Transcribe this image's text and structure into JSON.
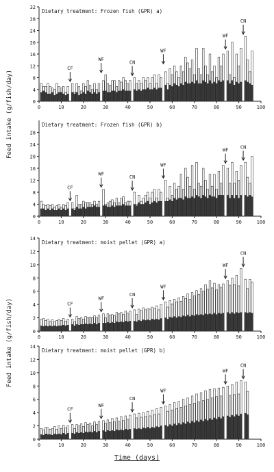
{
  "figure": {
    "ylabel_top": "Feed intake (g/fish/day)",
    "ylabel_bottom": "Feed intake (g/fish/day)",
    "xlabel": "Time (days)"
  },
  "chart_data": [
    {
      "type": "bar",
      "title": "Dietary treatment: Frozen fish (GPR) a)",
      "xlabel": "",
      "ylabel": "",
      "xlim": [
        0,
        100
      ],
      "ylim": [
        0,
        32
      ],
      "yticks": [
        0,
        4,
        8,
        12,
        16,
        20,
        24,
        28,
        32
      ],
      "xticks": [
        0,
        10,
        20,
        30,
        40,
        50,
        60,
        70,
        80,
        90,
        100
      ],
      "annotations": [
        {
          "label": "CF",
          "day": 14
        },
        {
          "label": "WF",
          "day": 28
        },
        {
          "label": "CN",
          "day": 42
        },
        {
          "label": "WF",
          "day": 56
        },
        {
          "label": "WF",
          "day": 84
        },
        {
          "label": "CN",
          "day": 92
        }
      ],
      "series": [
        {
          "values": [
            3,
            3.5,
            3,
            2.5,
            2.5,
            3,
            2,
            2.5,
            3,
            3,
            2.5,
            2,
            2.5,
            2.5,
            3,
            2.5,
            3,
            2,
            2.5,
            3,
            2.5,
            3.5,
            3,
            2.5,
            3,
            2.5,
            3,
            3,
            3.5,
            3.5,
            3,
            3,
            3.5,
            3.5,
            3,
            3.5,
            3.5,
            4,
            3.5,
            3.5,
            3.5,
            4,
            4,
            3.5,
            4,
            3.5,
            4,
            4,
            4.5,
            4,
            4,
            4.5,
            4,
            4.5,
            4.5,
            5,
            5.5,
            4,
            5.5,
            5,
            6,
            5.5,
            5,
            6,
            5.5,
            6.5,
            6,
            6,
            6.5,
            6,
            7,
            6,
            6,
            7,
            6.5,
            6,
            7,
            6,
            6.5,
            6,
            7,
            6.5,
            7,
            6.5,
            7,
            6,
            7,
            5.5,
            6.5,
            6,
            6.5,
            6,
            7,
            6.5,
            6,
            5.5
          ]
        },
        {
          "values": [
            6,
            5,
            5,
            6,
            5,
            4.5,
            4,
            6,
            5,
            4.5,
            5,
            3,
            5,
            5.5,
            6,
            3,
            6,
            5,
            3.5,
            6,
            5,
            7,
            5.5,
            4,
            6,
            4,
            6,
            5.5,
            7,
            9,
            6,
            5.5,
            7,
            7,
            5,
            7,
            6.5,
            8,
            7,
            6,
            7,
            8,
            8,
            6,
            7,
            6,
            8,
            7,
            8,
            6,
            8,
            9,
            6,
            9,
            8,
            12,
            10,
            6,
            11,
            9,
            12,
            10,
            8,
            12,
            10,
            15,
            13,
            11,
            14,
            9,
            18,
            11,
            9,
            18,
            12,
            9,
            16,
            10,
            12,
            8,
            15,
            12,
            16,
            11,
            17,
            9,
            20,
            8,
            16,
            12,
            18,
            9,
            22,
            14,
            10,
            17
          ]
        }
      ]
    },
    {
      "type": "bar",
      "title": "Dietary treatment: Frozen fish (GPR) b)",
      "xlabel": "",
      "ylabel": "",
      "xlim": [
        0,
        100
      ],
      "ylim": [
        0,
        32
      ],
      "yticks": [
        0,
        4,
        8,
        12,
        16,
        20,
        24,
        28
      ],
      "xticks": [
        0,
        10,
        20,
        30,
        40,
        50,
        60,
        70,
        80,
        90,
        100
      ],
      "annotations": [
        {
          "label": "CF",
          "day": 14
        },
        {
          "label": "WF",
          "day": 28
        },
        {
          "label": "CN",
          "day": 42
        },
        {
          "label": "WF",
          "day": 56
        },
        {
          "label": "WF",
          "day": 84
        },
        {
          "label": "CN",
          "day": 92
        }
      ],
      "series": [
        {
          "values": [
            2.5,
            2.5,
            2,
            2.5,
            2,
            2.5,
            2,
            2,
            2.5,
            2,
            2.5,
            2,
            2.5,
            2,
            2.5,
            2,
            3,
            2.5,
            2.5,
            3,
            2.5,
            3,
            3,
            3,
            3.5,
            3,
            3,
            3,
            3.5,
            3.5,
            3,
            3,
            3.5,
            3,
            3.5,
            3.5,
            3.5,
            4,
            3.5,
            3.5,
            3.5,
            4,
            4,
            3.5,
            4.5,
            4,
            4,
            4.5,
            5,
            4,
            4.5,
            5,
            4.5,
            5,
            5,
            5,
            5,
            5,
            5.5,
            5,
            6,
            5.5,
            6,
            6,
            5.5,
            6.5,
            6,
            6,
            6.5,
            6,
            7,
            6.5,
            6,
            7,
            6.5,
            6,
            7,
            6.5,
            6.5,
            6,
            7,
            7,
            7,
            6.5,
            7,
            6,
            7,
            6,
            7,
            6,
            7,
            6.5,
            7,
            6.5,
            7,
            6.5
          ]
        },
        {
          "values": [
            5,
            4,
            3.5,
            4,
            3.5,
            4,
            3,
            3.5,
            4,
            3,
            4,
            3.5,
            4.5,
            3,
            4.5,
            2.5,
            7,
            4,
            4,
            5,
            4.5,
            4.5,
            4.5,
            4,
            5,
            4,
            5,
            4.5,
            9,
            4,
            4.5,
            5,
            5.5,
            4.5,
            6,
            4.5,
            6,
            6.5,
            4.5,
            5,
            5,
            7,
            8,
            4,
            7,
            5,
            6,
            7,
            8,
            6,
            8,
            9,
            6,
            9,
            8,
            10,
            12,
            6,
            10,
            7,
            11,
            9,
            10,
            14,
            9,
            16,
            13,
            10,
            17,
            9,
            18,
            11,
            10,
            16,
            12,
            9,
            14,
            10,
            14,
            9,
            15,
            11,
            17,
            10,
            16,
            11,
            18,
            11,
            15,
            12,
            17,
            9,
            18,
            13,
            11,
            20
          ]
        }
      ]
    },
    {
      "type": "bar",
      "title": "Dietary treatment: moist pellet (GPR) a)",
      "xlabel": "",
      "ylabel": "",
      "xlim": [
        0,
        100
      ],
      "ylim": [
        0,
        14
      ],
      "yticks": [
        0,
        2,
        4,
        6,
        8,
        10,
        12,
        14
      ],
      "xticks": [
        0,
        10,
        20,
        30,
        40,
        50,
        60,
        70,
        80,
        90,
        100
      ],
      "annotations": [
        {
          "label": "CF",
          "day": 14
        },
        {
          "label": "WF",
          "day": 28
        },
        {
          "label": "CN",
          "day": 42
        },
        {
          "label": "WF",
          "day": 56
        },
        {
          "label": "WF",
          "day": 84
        },
        {
          "label": "CN",
          "day": 92
        }
      ],
      "series": [
        {
          "values": [
            0.8,
            0.7,
            0.8,
            0.7,
            0.8,
            0.7,
            0.8,
            0.7,
            0.8,
            0.8,
            0.9,
            0.8,
            0.9,
            0.8,
            1,
            0.8,
            1,
            0.9,
            1,
            1,
            1.1,
            1,
            1.1,
            1,
            1.2,
            1,
            1.2,
            1.1,
            1.2,
            1.2,
            1.3,
            1.2,
            1.3,
            1.2,
            1.4,
            1.3,
            1.4,
            1.3,
            1.5,
            1.4,
            1.5,
            1.4,
            1.5,
            1.4,
            1.6,
            1.5,
            1.7,
            1.6,
            1.7,
            1.6,
            1.8,
            1.7,
            1.8,
            1.7,
            1.9,
            1.8,
            2,
            1.8,
            2.1,
            2,
            2.2,
            2,
            2.2,
            2.1,
            2.3,
            2.2,
            2.4,
            2.2,
            2.4,
            2.3,
            2.5,
            2.4,
            2.5,
            2.4,
            2.6,
            2.5,
            2.6,
            2.5,
            2.7,
            2.5,
            2.7,
            2.6,
            2.7,
            2.6,
            2.8,
            2.6,
            2.8,
            2.6,
            2.8,
            2.7,
            2.8,
            2.7,
            2.8,
            2.7,
            2.8,
            2.7
          ]
        },
        {
          "values": [
            1.8,
            1.9,
            1.6,
            1.8,
            1.5,
            1.7,
            1.4,
            1.6,
            1.8,
            1.6,
            1.9,
            1.5,
            1.8,
            1.6,
            1.8,
            1.4,
            2.2,
            1.9,
            2,
            1.8,
            2.2,
            2,
            2.1,
            2,
            2.3,
            2,
            2.4,
            2.1,
            2.6,
            2,
            2.6,
            2.4,
            2.5,
            2.3,
            2.8,
            2.6,
            2.8,
            2.5,
            3,
            2.7,
            3,
            2.8,
            3.2,
            2.5,
            3.3,
            3.1,
            3.5,
            3.2,
            3.4,
            3.3,
            3.6,
            3.4,
            3.8,
            3.2,
            4,
            3.7,
            4.4,
            3.6,
            4.6,
            4.1,
            4.8,
            4.4,
            5,
            4.5,
            5.2,
            4.9,
            5.6,
            4.8,
            5.8,
            5.3,
            6.1,
            5.5,
            6.4,
            6,
            7,
            6.3,
            7.6,
            6.5,
            7.2,
            6.2,
            7,
            6.6,
            7.1,
            6.4,
            7.6,
            6.9,
            8,
            7,
            8.4,
            6.8,
            9.4,
            7.2,
            7.8,
            6.4,
            7.8,
            7.4
          ]
        }
      ]
    },
    {
      "type": "bar",
      "title": "Dietary treatment: moist pellet (GPR) b)",
      "xlabel": "",
      "ylabel": "",
      "xlim": [
        0,
        100
      ],
      "ylim": [
        0,
        14
      ],
      "yticks": [
        0,
        2,
        4,
        6,
        8,
        10,
        12,
        14
      ],
      "xticks": [
        0,
        10,
        20,
        30,
        40,
        50,
        60,
        70,
        80,
        90,
        100
      ],
      "annotations": [
        {
          "label": "CF",
          "day": 14
        },
        {
          "label": "WF",
          "day": 28
        },
        {
          "label": "CN",
          "day": 42
        },
        {
          "label": "WF",
          "day": 56
        },
        {
          "label": "WF",
          "day": 84
        },
        {
          "label": "CN",
          "day": 92
        }
      ],
      "series": [
        {
          "values": [
            0.7,
            0.6,
            0.8,
            0.7,
            0.7,
            0.6,
            0.8,
            0.7,
            0.8,
            0.7,
            0.9,
            0.7,
            0.9,
            0.8,
            0.9,
            0.8,
            1,
            0.9,
            1,
            0.9,
            1.1,
            1,
            1.1,
            1,
            1.2,
            1,
            1.2,
            1.1,
            1.3,
            1.1,
            1.3,
            1.2,
            1.3,
            1.2,
            1.4,
            1.3,
            1.4,
            1.3,
            1.5,
            1.4,
            1.5,
            1.4,
            1.6,
            1.5,
            1.6,
            1.5,
            1.7,
            1.6,
            1.8,
            1.6,
            1.8,
            1.7,
            1.9,
            1.8,
            2,
            1.8,
            2.1,
            1.9,
            2.2,
            2,
            2.3,
            2.1,
            2.4,
            2.2,
            2.5,
            2.3,
            2.6,
            2.4,
            2.7,
            2.5,
            2.8,
            2.6,
            2.9,
            2.7,
            3,
            2.8,
            3.1,
            2.9,
            3.2,
            3,
            3.3,
            3.1,
            3.4,
            3.2,
            3.5,
            3.3,
            3.6,
            3.4,
            3.7,
            3.5,
            3.8,
            3.6,
            3.9,
            3.7,
            4,
            3.8
          ]
        },
        {
          "values": [
            1.6,
            1.4,
            1.8,
            1.7,
            1.5,
            1.6,
            1.9,
            1.5,
            2,
            1.6,
            2.1,
            1.7,
            2,
            1.8,
            2.2,
            1.6,
            2.2,
            2,
            2.3,
            1.9,
            2.5,
            2.2,
            2.4,
            2,
            2.6,
            2.2,
            2.7,
            2.3,
            2.8,
            2.4,
            2.9,
            2.5,
            3.1,
            2.6,
            3.2,
            2.7,
            3.4,
            2.8,
            3.5,
            3,
            3.6,
            3,
            3.8,
            3.2,
            3.9,
            3.3,
            4,
            3.4,
            4.2,
            3.5,
            4.4,
            3.7,
            4.6,
            3.8,
            4.8,
            4,
            5,
            4.2,
            5.2,
            4.4,
            5.5,
            4.6,
            5.7,
            4.8,
            6,
            5,
            6.2,
            5.2,
            6.5,
            5.4,
            6.8,
            5.6,
            7,
            5.8,
            7.3,
            6,
            7.5,
            6.2,
            7.6,
            6.4,
            7.7,
            6.5,
            7.8,
            6.5,
            8,
            6.6,
            8.2,
            6.7,
            8.6,
            6.8,
            8.8,
            7,
            8.6,
            7.2
          ]
        }
      ]
    }
  ]
}
